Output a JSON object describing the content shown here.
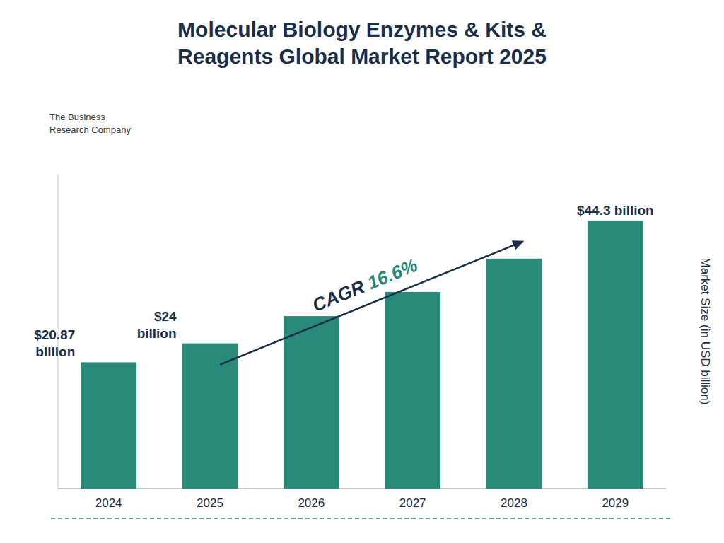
{
  "chart_data": {
    "type": "bar",
    "title": "Molecular Biology Enzymes & Kits &\nReagents Global Market Report 2025",
    "y_label": "Market Size (in USD billion)",
    "categories": [
      "2024",
      "2025",
      "2026",
      "2027",
      "2028",
      "2029"
    ],
    "values": [
      20.87,
      24.0,
      28.5,
      32.5,
      38.0,
      44.3
    ],
    "value_labels": [
      "$20.87\nbillion",
      "$24\nbillion",
      null,
      null,
      null,
      "$44.3 billion"
    ],
    "data_labels": true,
    "color": "#2a8a7a",
    "ylim": [
      0,
      52
    ],
    "tick_labels": "x",
    "grid": false,
    "annotations": [
      {
        "text": "CAGR ",
        "color": "#1a2e4a"
      },
      {
        "text": "16.6%",
        "color": "#2a8a7a"
      }
    ],
    "logo_text": "The Business\nResearch Company"
  }
}
